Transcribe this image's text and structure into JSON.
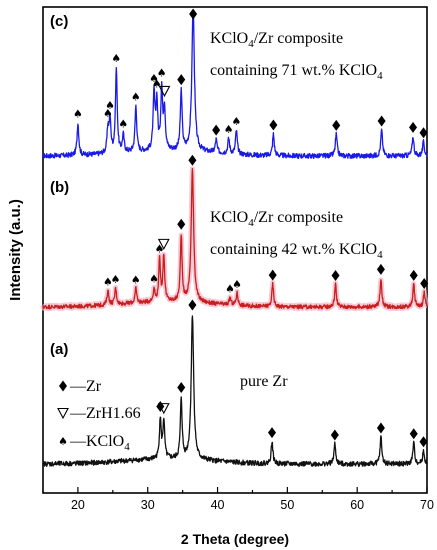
{
  "chart_data": {
    "type": "line",
    "xlabel": "2 Theta (degree)",
    "ylabel": "Intensity (a.u.)",
    "xlim": [
      15,
      70
    ],
    "xticks": [
      "20",
      "30",
      "40",
      "50",
      "60",
      "70"
    ],
    "series": [
      {
        "name": "(c)",
        "color": "#1a1ae6",
        "annotation": [
          "KClO",
          "4",
          "/Zr composite",
          "containing 71 wt.% KClO",
          "4"
        ],
        "peaks": [
          {
            "x": 20.0,
            "h": 0.3,
            "type": "spade"
          },
          {
            "x": 24.3,
            "h": 0.22,
            "type": "spade"
          },
          {
            "x": 24.6,
            "h": 0.3,
            "type": "spade"
          },
          {
            "x": 25.5,
            "h": 0.78,
            "type": "spade"
          },
          {
            "x": 26.5,
            "h": 0.16,
            "type": "spade"
          },
          {
            "x": 28.3,
            "h": 0.42,
            "type": "spade"
          },
          {
            "x": 30.9,
            "h": 0.52,
            "type": "spade"
          },
          {
            "x": 31.3,
            "h": 0.44,
            "type": "spade"
          },
          {
            "x": 32.0,
            "h": 0.56,
            "type": "spade"
          },
          {
            "x": 32.4,
            "h": 0.38,
            "type": "triangle"
          },
          {
            "x": 34.8,
            "h": 0.55,
            "type": "diamond"
          },
          {
            "x": 36.5,
            "h": 1.35,
            "type": "diamond"
          },
          {
            "x": 39.8,
            "h": 0.12,
            "type": "diamond"
          },
          {
            "x": 41.6,
            "h": 0.14,
            "type": "spade"
          },
          {
            "x": 42.7,
            "h": 0.22,
            "type": "spade"
          },
          {
            "x": 48.0,
            "h": 0.2,
            "type": "diamond"
          },
          {
            "x": 57.0,
            "h": 0.2,
            "type": "diamond"
          },
          {
            "x": 63.5,
            "h": 0.24,
            "type": "diamond"
          },
          {
            "x": 68.0,
            "h": 0.18,
            "type": "diamond"
          },
          {
            "x": 69.5,
            "h": 0.13,
            "type": "diamond"
          }
        ]
      },
      {
        "name": "(b)",
        "color": "#c81e1e",
        "annotation": [
          "KClO",
          "4",
          "/Zr composite",
          "containing 42 wt.% KClO",
          "4"
        ],
        "peaks": [
          {
            "x": 24.3,
            "h": 0.14,
            "type": "spade"
          },
          {
            "x": 25.4,
            "h": 0.16,
            "type": "spade"
          },
          {
            "x": 28.3,
            "h": 0.14,
            "type": "spade"
          },
          {
            "x": 30.9,
            "h": 0.12,
            "type": "spade"
          },
          {
            "x": 31.7,
            "h": 0.4,
            "type": "spade"
          },
          {
            "x": 32.3,
            "h": 0.45,
            "type": "triangle"
          },
          {
            "x": 34.8,
            "h": 0.65,
            "type": "diamond"
          },
          {
            "x": 36.4,
            "h": 1.3,
            "type": "diamond"
          },
          {
            "x": 41.8,
            "h": 0.07,
            "type": "spade"
          },
          {
            "x": 42.8,
            "h": 0.12,
            "type": "spade"
          },
          {
            "x": 47.9,
            "h": 0.22,
            "type": "diamond"
          },
          {
            "x": 56.9,
            "h": 0.22,
            "type": "diamond"
          },
          {
            "x": 63.4,
            "h": 0.28,
            "type": "diamond"
          },
          {
            "x": 68.1,
            "h": 0.22,
            "type": "diamond"
          },
          {
            "x": 69.6,
            "h": 0.14,
            "type": "diamond"
          }
        ]
      },
      {
        "name": "(a)",
        "color": "#111111",
        "annotation": [
          "pure Zr"
        ],
        "peaks": [
          {
            "x": 31.8,
            "h": 0.4,
            "type": "diamond"
          },
          {
            "x": 32.3,
            "h": 0.38,
            "type": "triangle"
          },
          {
            "x": 34.8,
            "h": 0.6,
            "type": "diamond"
          },
          {
            "x": 36.4,
            "h": 1.45,
            "type": "diamond"
          },
          {
            "x": 47.8,
            "h": 0.22,
            "type": "diamond"
          },
          {
            "x": 56.8,
            "h": 0.2,
            "type": "diamond"
          },
          {
            "x": 63.4,
            "h": 0.27,
            "type": "diamond"
          },
          {
            "x": 68.1,
            "h": 0.21,
            "type": "diamond"
          },
          {
            "x": 69.5,
            "h": 0.13,
            "type": "diamond"
          }
        ]
      }
    ],
    "legend": {
      "placement": "inside-bottom-left",
      "items": [
        {
          "symbol": "diamond",
          "text": "Zr"
        },
        {
          "symbol": "triangle",
          "text": "ZrH1.66"
        },
        {
          "symbol": "spade",
          "text": "KClO",
          "sub": "4"
        }
      ]
    }
  }
}
